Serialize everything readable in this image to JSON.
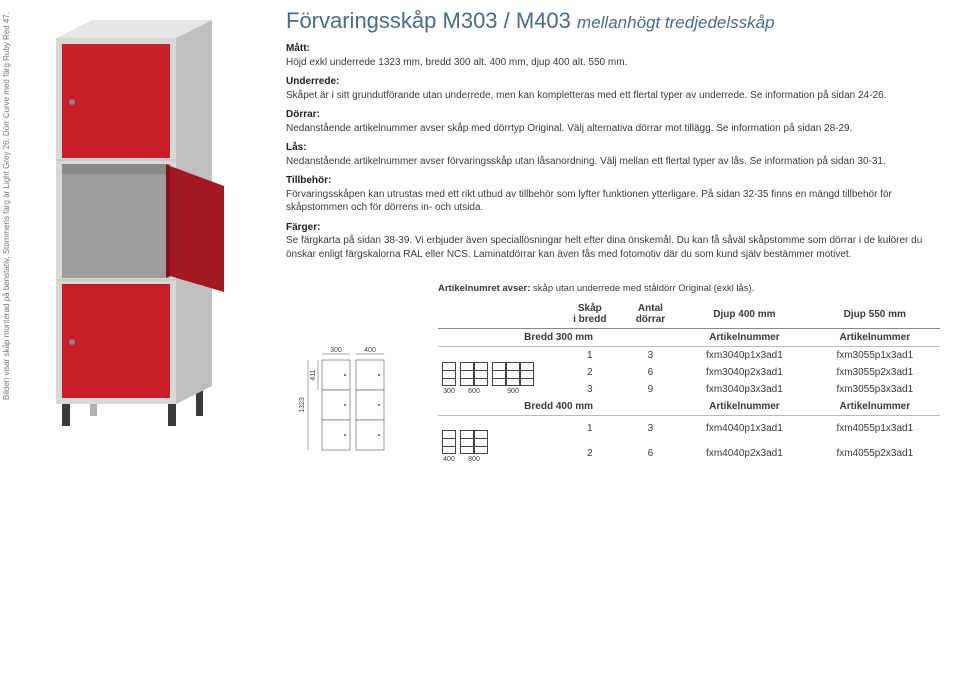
{
  "caption_rotated": "Bilden visar skåp monterad på benstativ. Stommens färg är Light Grey 26. Dörr Curve med färg Ruby Red 47.",
  "title_main": "Förvaringsskåp M303 / M403",
  "title_sub": "mellanhögt tredjedelsskåp",
  "sections": {
    "matt_h": "Mått:",
    "matt": "Höjd exkl underrede 1323 mm, bredd 300 alt. 400 mm, djup 400 alt. 550 mm.",
    "und_h": "Underrede:",
    "und": "Skåpet är i sitt grundutförande utan underrede, men kan kompletteras med ett flertal typer av underrede. Se information på sidan 24-26.",
    "dor_h": "Dörrar:",
    "dor": "Nedanstående artikelnummer avser skåp med dörrtyp Original. Välj alternativa dörrar mot tillägg. Se information på sidan 28-29.",
    "las_h": "Lås:",
    "las": "Nedanstående artikelnummer avser förvaringsskåp utan låsanordning. Välj mellan ett flertal typer av lås. Se information på sidan 30-31.",
    "til_h": "Tillbehör:",
    "til": "Förvaringsskåpen kan utrustas med ett rikt utbud av tillbehör som lyfter funktionen ytterligare. På sidan 32-35 finns en mängd tillbehör för skåpstommen och för dörrens in- och utsida.",
    "far_h": "Färger:",
    "far": "Se färgkarta på sidan 38-39. Vi erbjuder även speciallösningar helt efter dina önskemål. Du kan få såväl skåpstomme som dörrar i de kulörer du önskar enligt färgskalorna RAL eller NCS. Laminatdörrar kan även fås med fotomotiv där du som kund själv bestämmer motivet."
  },
  "artnote_b": "Artikelnumret avser:",
  "artnote_t": " skåp utan underrede med ståldörr Original (exkl lås).",
  "th": {
    "skap": "Skåp",
    "ibredd": "i bredd",
    "antal": "Antal",
    "dorrar": "dörrar",
    "d400": "Djup 400 mm",
    "d550": "Djup 550 mm",
    "an": "Artikelnummer"
  },
  "groups": [
    {
      "label": "Bredd 300 mm",
      "mini_widths": [
        "300",
        "600",
        "900"
      ],
      "mini_cols": 3,
      "rows": [
        {
          "s": "1",
          "a": "3",
          "c1": "fxm3040p1x3ad1",
          "c2": "fxm3055p1x3ad1"
        },
        {
          "s": "2",
          "a": "6",
          "c1": "fxm3040p2x3ad1",
          "c2": "fxm3055p2x3ad1"
        },
        {
          "s": "3",
          "a": "9",
          "c1": "fxm3040p3x3ad1",
          "c2": "fxm3055p3x3ad1"
        }
      ]
    },
    {
      "label": "Bredd 400 mm",
      "mini_widths": [
        "400",
        "800"
      ],
      "mini_cols": 2,
      "rows": [
        {
          "s": "1",
          "a": "3",
          "c1": "fxm4040p1x3ad1",
          "c2": "fxm4055p1x3ad1"
        },
        {
          "s": "2",
          "a": "6",
          "c1": "fxm4040p2x3ad1",
          "c2": "fxm4055p2x3ad1"
        }
      ]
    }
  ],
  "diagram": {
    "w1": "300",
    "w2": "400",
    "h_total": "1323",
    "h_cell": "411"
  },
  "colors": {
    "door": "#d3202a",
    "body": "#cfcfcf",
    "shade": "#b8b8b8",
    "line": "#333"
  },
  "photo": {
    "body": "#d8d8d8",
    "door": "#c91e28",
    "door_dark": "#a31820",
    "frame": "#bfbfbf",
    "inner": "#a9a9a9",
    "leg": "#3a3a3a"
  }
}
